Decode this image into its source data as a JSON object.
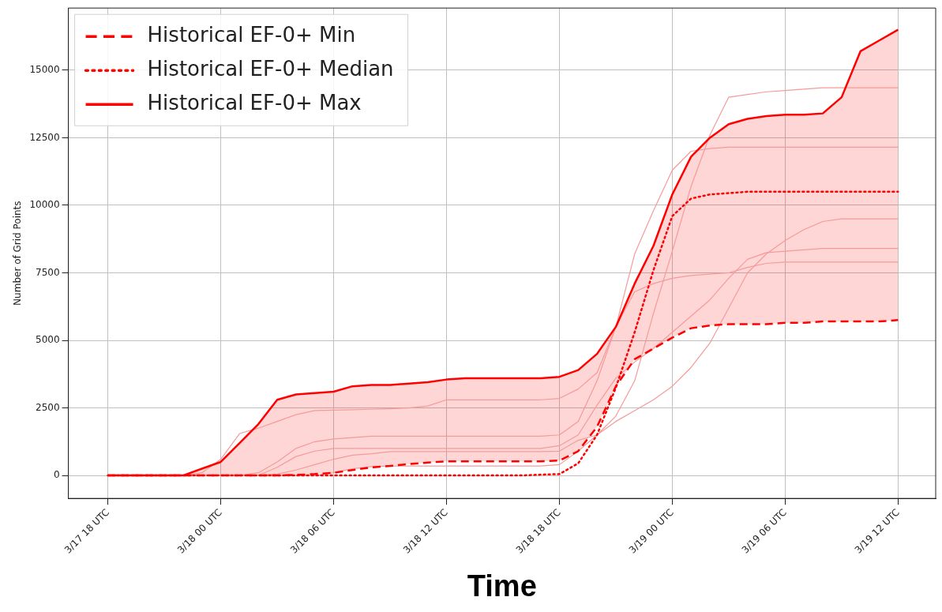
{
  "chart_data": {
    "type": "line",
    "xlabel": "Time",
    "ylabel": "Number of Grid Points",
    "x": [
      "--03-17T18:00",
      "--03-17T19:00",
      "--03-17T20:00",
      "--03-17T21:00",
      "--03-17T22:00",
      "--03-17T23:00",
      "--03-18T00:00",
      "--03-18T01:00",
      "--03-18T02:00",
      "--03-18T03:00",
      "--03-18T04:00",
      "--03-18T05:00",
      "--03-18T06:00",
      "--03-18T07:00",
      "--03-18T08:00",
      "--03-18T09:00",
      "--03-18T10:00",
      "--03-18T11:00",
      "--03-18T12:00",
      "--03-18T13:00",
      "--03-18T14:00",
      "--03-18T15:00",
      "--03-18T16:00",
      "--03-18T17:00",
      "--03-18T18:00",
      "--03-18T19:00",
      "--03-18T20:00",
      "--03-18T21:00",
      "--03-18T22:00",
      "--03-18T23:00",
      "--03-19T00:00",
      "--03-19T01:00",
      "--03-19T02:00",
      "--03-19T03:00",
      "--03-19T04:00",
      "--03-19T05:00",
      "--03-19T06:00",
      "--03-19T07:00",
      "--03-19T08:00",
      "--03-19T09:00",
      "--03-19T10:00",
      "--03-19T11:00",
      "--03-19T12:00"
    ],
    "series": [
      {
        "name": "Historical EF-0+ Min",
        "color": "#ff0000",
        "line_style": "dashed",
        "values": [
          0,
          0,
          0,
          0,
          0,
          0,
          0,
          0,
          0,
          0,
          20,
          50,
          100,
          200,
          300,
          350,
          420,
          480,
          520,
          520,
          520,
          520,
          520,
          520,
          550,
          900,
          1800,
          3300,
          4300,
          4700,
          5100,
          5450,
          5550,
          5600,
          5600,
          5600,
          5650,
          5650,
          5700,
          5700,
          5700,
          5700,
          5750
        ]
      },
      {
        "name": "Historical EF-0+ Median",
        "color": "#ff0000",
        "line_style": "dotted",
        "values": [
          0,
          0,
          0,
          0,
          0,
          0,
          0,
          0,
          0,
          0,
          0,
          0,
          0,
          0,
          0,
          0,
          0,
          0,
          0,
          0,
          0,
          0,
          0,
          30,
          50,
          450,
          1500,
          3250,
          5300,
          7600,
          9600,
          10250,
          10400,
          10450,
          10500,
          10500,
          10500,
          10500,
          10500,
          10500,
          10500,
          10500,
          10500
        ],
        "lower": [
          0,
          0,
          0,
          0,
          0,
          0,
          0,
          0,
          0,
          0,
          20,
          50,
          100,
          200,
          300,
          350,
          420,
          480,
          520,
          520,
          520,
          520,
          520,
          520,
          550,
          900,
          1800,
          3300,
          4300,
          4700,
          5100,
          5450,
          5550,
          5600,
          5600,
          5600,
          5650,
          5650,
          5700,
          5700,
          5700,
          5700,
          5750
        ],
        "upper": [
          0,
          0,
          0,
          0,
          0,
          250,
          500,
          1200,
          1900,
          2800,
          3000,
          3050,
          3100,
          3300,
          3350,
          3350,
          3400,
          3450,
          3550,
          3600,
          3600,
          3600,
          3600,
          3600,
          3650,
          3900,
          4500,
          5500,
          7100,
          8500,
          10400,
          11800,
          12500,
          13000,
          13200,
          13300,
          13350,
          13350,
          13400,
          14000,
          15700,
          16100,
          16500
        ]
      },
      {
        "name": "Historical EF-0+ Max",
        "color": "#ff0000",
        "line_style": "solid",
        "values": [
          0,
          0,
          0,
          0,
          0,
          250,
          500,
          1200,
          1900,
          2800,
          3000,
          3050,
          3100,
          3300,
          3350,
          3350,
          3400,
          3450,
          3550,
          3600,
          3600,
          3600,
          3600,
          3600,
          3650,
          3900,
          4500,
          5500,
          7100,
          8500,
          10400,
          11800,
          12500,
          13000,
          13200,
          13300,
          13350,
          13350,
          13400,
          14000,
          15700,
          16100,
          16500
        ]
      },
      {
        "color": "#f59a9a",
        "line_style": "solid",
        "values": [
          0,
          0,
          0,
          0,
          0,
          0,
          0,
          0,
          0,
          50,
          200,
          400,
          600,
          750,
          800,
          880,
          880,
          880,
          880,
          880,
          880,
          880,
          880,
          880,
          900,
          1300,
          1500,
          2200,
          3500,
          6000,
          8300,
          10700,
          12600,
          14000,
          14100,
          14200,
          14250,
          14300,
          14350,
          14350,
          14350,
          14350,
          14350
        ]
      },
      {
        "color": "#f59a9a",
        "line_style": "solid",
        "values": [
          0,
          0,
          0,
          0,
          0,
          100,
          600,
          1550,
          1750,
          2000,
          2250,
          2400,
          2420,
          2430,
          2450,
          2470,
          2500,
          2570,
          2800,
          2800,
          2800,
          2800,
          2800,
          2800,
          2850,
          3200,
          3800,
          5500,
          8200,
          9800,
          11300,
          12000,
          12100,
          12150,
          12150,
          12150,
          12150,
          12150,
          12150,
          12150,
          12150,
          12150,
          12150
        ]
      },
      {
        "color": "#f59a9a",
        "line_style": "solid",
        "values": [
          0,
          0,
          0,
          0,
          0,
          0,
          0,
          0,
          100,
          500,
          1000,
          1250,
          1350,
          1400,
          1450,
          1450,
          1450,
          1450,
          1450,
          1450,
          1450,
          1450,
          1450,
          1450,
          1500,
          2000,
          3500,
          5500,
          6800,
          7100,
          7300,
          7400,
          7450,
          7500,
          7700,
          7850,
          7900,
          7900,
          7900,
          7900,
          7900,
          7900,
          7900
        ]
      },
      {
        "color": "#f59a9a",
        "line_style": "solid",
        "values": [
          0,
          0,
          0,
          0,
          0,
          0,
          0,
          0,
          0,
          300,
          700,
          900,
          1000,
          1000,
          1000,
          1000,
          1000,
          1000,
          1000,
          1000,
          1000,
          1000,
          1000,
          1000,
          1100,
          1500,
          2600,
          3600,
          4200,
          4700,
          5300,
          5900,
          6500,
          7300,
          8000,
          8250,
          8300,
          8350,
          8400,
          8400,
          8400,
          8400,
          8400
        ]
      },
      {
        "color": "#f59a9a",
        "line_style": "solid",
        "values": [
          0,
          0,
          0,
          0,
          0,
          0,
          0,
          0,
          0,
          0,
          0,
          0,
          100,
          250,
          330,
          350,
          350,
          350,
          350,
          350,
          350,
          350,
          350,
          350,
          400,
          900,
          1500,
          2000,
          2400,
          2800,
          3300,
          4000,
          4900,
          6200,
          7500,
          8200,
          8700,
          9100,
          9400,
          9500,
          9500,
          9500,
          9500
        ]
      }
    ],
    "xlim": [
      "--03-17T15:54",
      "--03-19T14:00"
    ],
    "xticks": [
      {
        "value": "--03-17T18:00",
        "label": "3/17 18 UTC"
      },
      {
        "value": "--03-18T00:00",
        "label": "3/18 00 UTC"
      },
      {
        "value": "--03-18T06:00",
        "label": "3/18 06 UTC"
      },
      {
        "value": "--03-18T12:00",
        "label": "3/18 12 UTC"
      },
      {
        "value": "--03-18T18:00",
        "label": "3/18 18 UTC"
      },
      {
        "value": "--03-19T00:00",
        "label": "3/19 00 UTC"
      },
      {
        "value": "--03-19T06:00",
        "label": "3/19 06 UTC"
      },
      {
        "value": "--03-19T12:00",
        "label": "3/19 12 UTC"
      }
    ],
    "ylim": [
      -850,
      17300
    ],
    "yticks": [
      0,
      2500,
      5000,
      7500,
      10000,
      12500,
      15000
    ],
    "grid": true,
    "legend": "top left",
    "marker": "none"
  }
}
